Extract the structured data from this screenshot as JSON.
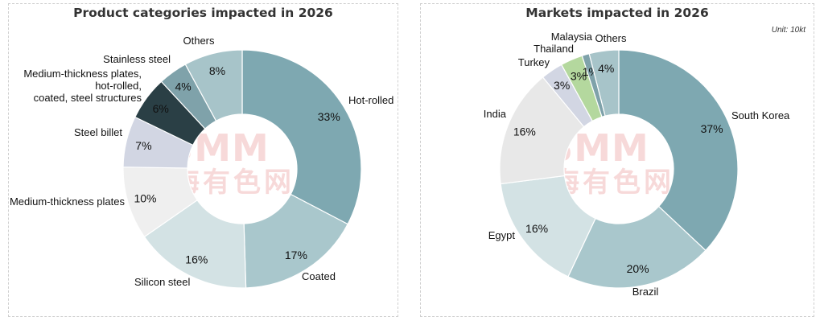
{
  "watermark": {
    "brand": "SMM",
    "chinese": "上海有色网"
  },
  "chart_data": [
    {
      "type": "pie",
      "title": "Product categories impacted in 2026",
      "slices": [
        {
          "label": "Hot-rolled",
          "value": 33,
          "pct_label": "33%",
          "color": "#7ea8b1"
        },
        {
          "label": "Coated",
          "value": 17,
          "pct_label": "17%",
          "color": "#a9c7cc"
        },
        {
          "label": "Silicon steel",
          "value": 16,
          "pct_label": "16%",
          "color": "#d3e2e4"
        },
        {
          "label": "Medium-thickness plates",
          "value": 10,
          "pct_label": "10%",
          "color": "#efefef"
        },
        {
          "label": "Steel billet",
          "value": 7,
          "pct_label": "7%",
          "color": "#d2d6e3"
        },
        {
          "label": "Medium-thickness plates, hot-rolled, coated, steel structures",
          "label_lines": [
            "Medium-thickness plates,",
            "hot-rolled,",
            "coated, steel structures"
          ],
          "value": 6,
          "pct_label": "6%",
          "color": "#2a3f45"
        },
        {
          "label": "Stainless steel",
          "value": 4,
          "pct_label": "4%",
          "color": "#7fa2aa"
        },
        {
          "label": "Others",
          "value": 8,
          "pct_label": "8%",
          "color": "#a7c4c9"
        }
      ]
    },
    {
      "type": "pie",
      "title": "Markets impacted in 2026",
      "unit": "Unit: 10kt",
      "slices": [
        {
          "label": "South Korea",
          "value": 37,
          "pct_label": "37%",
          "color": "#7ea8b1"
        },
        {
          "label": "Brazil",
          "value": 20,
          "pct_label": "20%",
          "color": "#a9c7cc"
        },
        {
          "label": "Egypt",
          "value": 16,
          "pct_label": "16%",
          "color": "#d3e2e4"
        },
        {
          "label": "India",
          "value": 16,
          "pct_label": "16%",
          "color": "#e8e8e8"
        },
        {
          "label": "Turkey",
          "value": 3,
          "pct_label": "3%",
          "color": "#d2d6e3"
        },
        {
          "label": "Thailand",
          "value": 3,
          "pct_label": "3%",
          "color": "#b4d89e"
        },
        {
          "label": "Malaysia",
          "value": 1,
          "pct_label": "1%",
          "color": "#7fa2aa"
        },
        {
          "label": "Others",
          "value": 4,
          "pct_label": "4%",
          "color": "#a7c4c9"
        }
      ]
    }
  ]
}
